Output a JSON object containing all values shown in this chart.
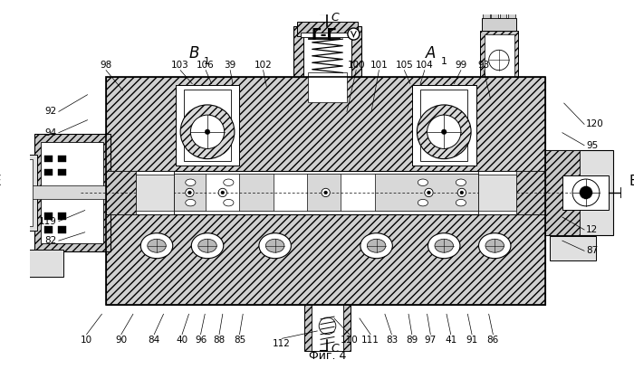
{
  "title": "Фиг. 4",
  "bg_color": "#ffffff",
  "line_color": "#000000",
  "fig_width": 7.0,
  "fig_height": 4.29,
  "dpi": 100,
  "top_labels": [
    [
      "98",
      88,
      355
    ],
    [
      "103",
      178,
      355
    ],
    [
      "106",
      207,
      355
    ],
    [
      "39",
      235,
      355
    ],
    [
      "102",
      275,
      355
    ],
    [
      "C",
      358,
      355
    ],
    [
      "100",
      385,
      355
    ],
    [
      "101",
      410,
      355
    ],
    [
      "105",
      440,
      355
    ],
    [
      "104",
      465,
      355
    ],
    [
      "99",
      510,
      355
    ],
    [
      "93",
      537,
      355
    ]
  ],
  "bottom_labels": [
    [
      "10",
      67,
      62
    ],
    [
      "90",
      107,
      62
    ],
    [
      "84",
      145,
      62
    ],
    [
      "40",
      178,
      62
    ],
    [
      "96",
      200,
      62
    ],
    [
      "88",
      222,
      62
    ],
    [
      "85",
      248,
      62
    ],
    [
      "112",
      298,
      55
    ],
    [
      "C",
      352,
      48
    ],
    [
      "110",
      378,
      62
    ],
    [
      "111",
      402,
      62
    ],
    [
      "83",
      428,
      62
    ],
    [
      "89",
      450,
      62
    ],
    [
      "97",
      473,
      62
    ],
    [
      "41",
      498,
      62
    ],
    [
      "91",
      523,
      62
    ],
    [
      "86",
      548,
      62
    ]
  ],
  "right_labels": [
    [
      "120",
      663,
      340
    ],
    [
      "95",
      663,
      305
    ],
    [
      "12",
      663,
      195
    ],
    [
      "87",
      663,
      160
    ]
  ],
  "left_labels": [
    [
      "92",
      28,
      348
    ],
    [
      "94",
      28,
      320
    ],
    [
      "119",
      28,
      218
    ],
    [
      "82",
      28,
      188
    ]
  ]
}
